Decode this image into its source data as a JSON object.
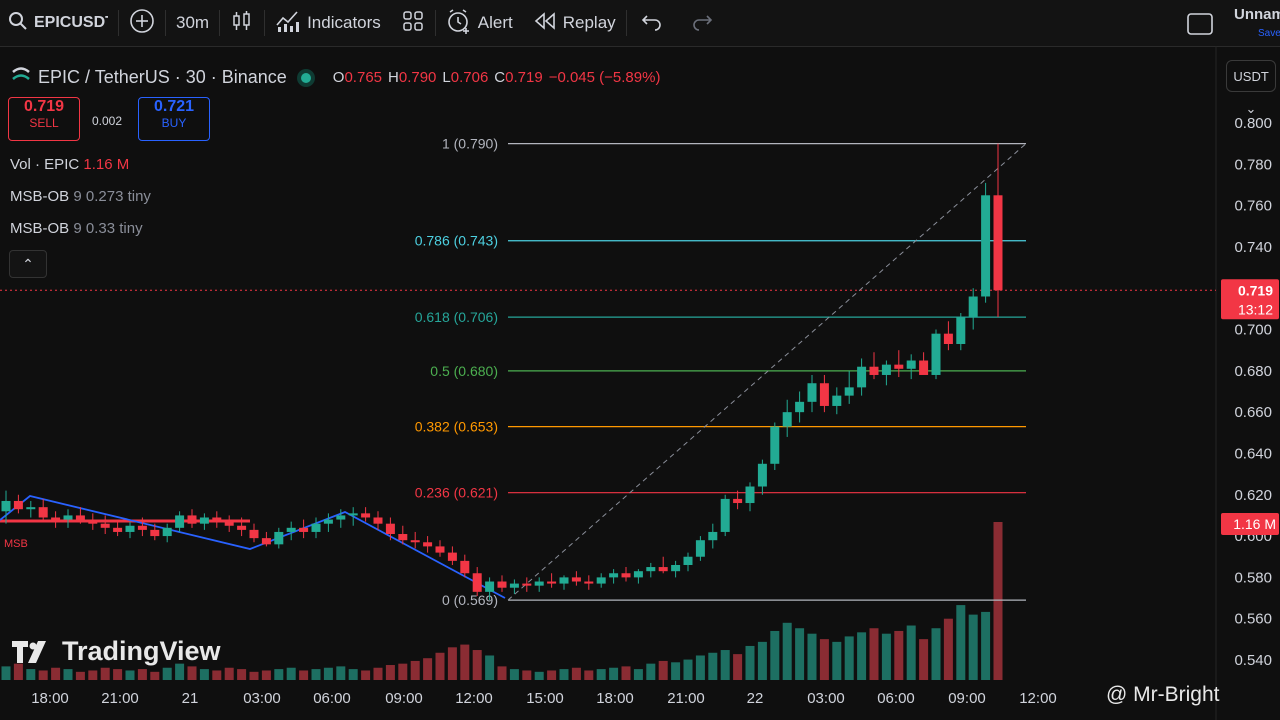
{
  "toolbar": {
    "symbol": "EPICUSDT",
    "interval": "30m",
    "indicators_label": "Indicators",
    "alert_label": "Alert",
    "replay_label": "Replay",
    "layout_name": "Unnamed",
    "saved_label": "Saved",
    "icons": [
      "plus-circle-icon",
      "candles-icon",
      "indicators-icon",
      "layouts-icon",
      "alert-icon",
      "replay-icon",
      "undo-icon",
      "redo-icon",
      "fullscreen-icon"
    ]
  },
  "legend": {
    "title": "EPIC / TetherUS · 30 · Binance",
    "ohlc": [
      {
        "k": "O",
        "v": "0.765"
      },
      {
        "k": "H",
        "v": "0.790"
      },
      {
        "k": "L",
        "v": "0.706"
      },
      {
        "k": "C",
        "v": "0.719"
      }
    ],
    "change": "−0.045 (−5.89%)"
  },
  "trade": {
    "sell_price": "0.719",
    "sell_label": "SELL",
    "spread": "0.002",
    "buy_price": "0.721",
    "buy_label": "BUY"
  },
  "indicators": [
    {
      "name": "Vol · EPIC",
      "value": "1.16 M"
    },
    {
      "name": "MSB-OB",
      "value": "9 0.273 tiny"
    },
    {
      "name": "MSB-OB",
      "value": "9 0.33 tiny"
    }
  ],
  "currency": "USDT",
  "colors": {
    "up": "#22ab94",
    "down": "#f23645",
    "bg": "#0f0f0f"
  },
  "chart_data": {
    "type": "candlestick",
    "price_axis": {
      "ticks": [
        "0.800",
        "0.780",
        "0.760",
        "0.740",
        "0.720",
        "0.700",
        "0.680",
        "0.660",
        "0.640",
        "0.620",
        "0.600",
        "0.580",
        "0.560",
        "0.540"
      ],
      "range": [
        0.535,
        0.808
      ]
    },
    "time_axis": {
      "ticks": [
        "18:00",
        "21:00",
        "21",
        "03:00",
        "06:00",
        "09:00",
        "12:00",
        "15:00",
        "18:00",
        "21:00",
        "22",
        "03:00",
        "06:00",
        "09:00",
        "12:00"
      ]
    },
    "last_price": {
      "label": "0.719",
      "countdown": "13:12"
    },
    "volume_label": "1.16 M",
    "msb_label": "MSB",
    "fib_levels": [
      {
        "label": "1 (0.790)",
        "price": 0.79,
        "color": "#b2b5be"
      },
      {
        "label": "0.786 (0.743)",
        "price": 0.743,
        "color": "#4dd0e1"
      },
      {
        "label": "0.618 (0.706)",
        "price": 0.706,
        "color": "#26a69a"
      },
      {
        "label": "0.5 (0.680)",
        "price": 0.68,
        "color": "#4caf50"
      },
      {
        "label": "0.382 (0.653)",
        "price": 0.653,
        "color": "#ff9800"
      },
      {
        "label": "0.236 (0.621)",
        "price": 0.621,
        "color": "#f23645"
      },
      {
        "label": "0 (0.569)",
        "price": 0.569,
        "color": "#b2b5be"
      }
    ],
    "candles": [
      [
        0.612,
        0.622,
        0.606,
        0.617
      ],
      [
        0.617,
        0.62,
        0.611,
        0.613
      ],
      [
        0.613,
        0.617,
        0.609,
        0.614
      ],
      [
        0.614,
        0.618,
        0.608,
        0.609
      ],
      [
        0.609,
        0.612,
        0.604,
        0.608
      ],
      [
        0.608,
        0.613,
        0.604,
        0.61
      ],
      [
        0.61,
        0.614,
        0.606,
        0.608
      ],
      [
        0.608,
        0.611,
        0.603,
        0.606
      ],
      [
        0.606,
        0.61,
        0.601,
        0.604
      ],
      [
        0.604,
        0.608,
        0.6,
        0.602
      ],
      [
        0.602,
        0.607,
        0.599,
        0.605
      ],
      [
        0.605,
        0.609,
        0.6,
        0.603
      ],
      [
        0.603,
        0.606,
        0.598,
        0.6
      ],
      [
        0.6,
        0.606,
        0.597,
        0.604
      ],
      [
        0.604,
        0.612,
        0.602,
        0.61
      ],
      [
        0.61,
        0.613,
        0.604,
        0.606
      ],
      [
        0.606,
        0.611,
        0.603,
        0.609
      ],
      [
        0.609,
        0.612,
        0.604,
        0.607
      ],
      [
        0.607,
        0.61,
        0.602,
        0.605
      ],
      [
        0.605,
        0.609,
        0.6,
        0.603
      ],
      [
        0.603,
        0.606,
        0.597,
        0.599
      ],
      [
        0.599,
        0.602,
        0.595,
        0.596
      ],
      [
        0.596,
        0.604,
        0.594,
        0.602
      ],
      [
        0.602,
        0.607,
        0.598,
        0.604
      ],
      [
        0.604,
        0.608,
        0.599,
        0.602
      ],
      [
        0.602,
        0.609,
        0.599,
        0.606
      ],
      [
        0.606,
        0.611,
        0.602,
        0.608
      ],
      [
        0.608,
        0.613,
        0.604,
        0.61
      ],
      [
        0.61,
        0.614,
        0.605,
        0.611
      ],
      [
        0.611,
        0.614,
        0.607,
        0.609
      ],
      [
        0.609,
        0.612,
        0.603,
        0.606
      ],
      [
        0.606,
        0.609,
        0.598,
        0.601
      ],
      [
        0.601,
        0.605,
        0.596,
        0.598
      ],
      [
        0.598,
        0.602,
        0.594,
        0.597
      ],
      [
        0.597,
        0.6,
        0.592,
        0.595
      ],
      [
        0.595,
        0.598,
        0.59,
        0.592
      ],
      [
        0.592,
        0.595,
        0.586,
        0.588
      ],
      [
        0.588,
        0.591,
        0.58,
        0.582
      ],
      [
        0.582,
        0.585,
        0.571,
        0.573
      ],
      [
        0.573,
        0.58,
        0.569,
        0.578
      ],
      [
        0.578,
        0.581,
        0.573,
        0.575
      ],
      [
        0.575,
        0.579,
        0.572,
        0.577
      ],
      [
        0.577,
        0.58,
        0.573,
        0.576
      ],
      [
        0.576,
        0.58,
        0.573,
        0.578
      ],
      [
        0.578,
        0.582,
        0.575,
        0.577
      ],
      [
        0.577,
        0.581,
        0.574,
        0.58
      ],
      [
        0.58,
        0.583,
        0.576,
        0.578
      ],
      [
        0.578,
        0.581,
        0.574,
        0.577
      ],
      [
        0.577,
        0.582,
        0.575,
        0.58
      ],
      [
        0.58,
        0.584,
        0.577,
        0.582
      ],
      [
        0.582,
        0.585,
        0.578,
        0.58
      ],
      [
        0.58,
        0.584,
        0.577,
        0.583
      ],
      [
        0.583,
        0.587,
        0.58,
        0.585
      ],
      [
        0.585,
        0.59,
        0.582,
        0.583
      ],
      [
        0.583,
        0.588,
        0.58,
        0.586
      ],
      [
        0.586,
        0.592,
        0.583,
        0.59
      ],
      [
        0.59,
        0.6,
        0.588,
        0.598
      ],
      [
        0.598,
        0.606,
        0.594,
        0.602
      ],
      [
        0.602,
        0.62,
        0.6,
        0.618
      ],
      [
        0.618,
        0.622,
        0.613,
        0.616
      ],
      [
        0.616,
        0.626,
        0.612,
        0.624
      ],
      [
        0.624,
        0.637,
        0.62,
        0.635
      ],
      [
        0.635,
        0.655,
        0.632,
        0.653
      ],
      [
        0.653,
        0.666,
        0.648,
        0.66
      ],
      [
        0.66,
        0.67,
        0.655,
        0.665
      ],
      [
        0.665,
        0.678,
        0.66,
        0.674
      ],
      [
        0.674,
        0.678,
        0.66,
        0.663
      ],
      [
        0.663,
        0.672,
        0.659,
        0.668
      ],
      [
        0.668,
        0.68,
        0.664,
        0.672
      ],
      [
        0.672,
        0.686,
        0.668,
        0.682
      ],
      [
        0.682,
        0.689,
        0.676,
        0.678
      ],
      [
        0.678,
        0.685,
        0.673,
        0.683
      ],
      [
        0.683,
        0.69,
        0.677,
        0.681
      ],
      [
        0.681,
        0.688,
        0.676,
        0.685
      ],
      [
        0.685,
        0.689,
        0.679,
        0.678
      ],
      [
        0.678,
        0.7,
        0.676,
        0.698
      ],
      [
        0.698,
        0.704,
        0.69,
        0.693
      ],
      [
        0.693,
        0.708,
        0.69,
        0.706
      ],
      [
        0.706,
        0.72,
        0.7,
        0.716
      ],
      [
        0.716,
        0.771,
        0.713,
        0.765
      ],
      [
        0.765,
        0.79,
        0.706,
        0.719
      ]
    ],
    "volumes": [
      0.1,
      0.12,
      0.08,
      0.07,
      0.09,
      0.08,
      0.06,
      0.07,
      0.09,
      0.08,
      0.07,
      0.08,
      0.06,
      0.09,
      0.12,
      0.1,
      0.08,
      0.07,
      0.09,
      0.08,
      0.06,
      0.07,
      0.08,
      0.09,
      0.07,
      0.08,
      0.09,
      0.1,
      0.08,
      0.07,
      0.09,
      0.11,
      0.12,
      0.14,
      0.16,
      0.2,
      0.24,
      0.26,
      0.22,
      0.18,
      0.1,
      0.08,
      0.07,
      0.06,
      0.07,
      0.08,
      0.09,
      0.07,
      0.08,
      0.09,
      0.1,
      0.08,
      0.12,
      0.14,
      0.13,
      0.15,
      0.18,
      0.2,
      0.22,
      0.19,
      0.25,
      0.28,
      0.36,
      0.42,
      0.38,
      0.34,
      0.3,
      0.28,
      0.32,
      0.35,
      0.38,
      0.34,
      0.36,
      0.4,
      0.3,
      0.38,
      0.45,
      0.55,
      0.48,
      0.5,
      1.16
    ]
  },
  "branding": {
    "logo_text": "TradingView",
    "watermark": "@ Mr-Bright"
  }
}
